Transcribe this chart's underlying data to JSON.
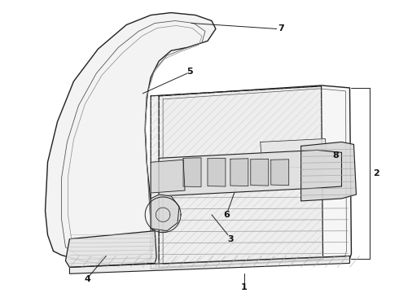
{
  "background_color": "#ffffff",
  "line_color": "#222222",
  "label_color": "#111111",
  "figsize": [
    4.9,
    3.6
  ],
  "dpi": 100
}
